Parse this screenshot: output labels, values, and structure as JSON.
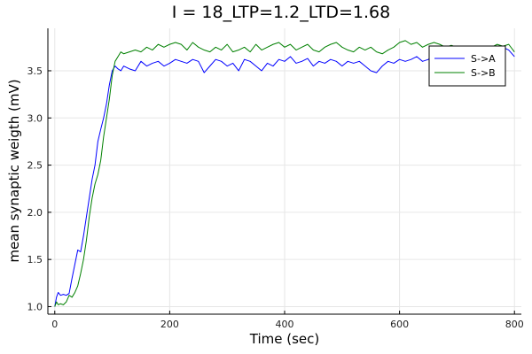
{
  "chart_data": {
    "type": "line",
    "title": "I = 18_LTP=1.2_LTD=1.68",
    "xlabel": "Time (sec)",
    "ylabel": "mean synaptic weigth (mV)",
    "xlim": [
      -12,
      812
    ],
    "ylim": [
      0.92,
      3.95
    ],
    "xticks": [
      0,
      200,
      400,
      600,
      800
    ],
    "yticks": [
      1.0,
      1.5,
      2.0,
      2.5,
      3.0,
      3.5
    ],
    "grid": true,
    "legend_position": "top-right",
    "series": [
      {
        "name": "S->A",
        "color": "#0000ff",
        "x": [
          0,
          3,
          6,
          10,
          15,
          20,
          25,
          30,
          35,
          40,
          45,
          50,
          55,
          60,
          65,
          70,
          75,
          80,
          85,
          90,
          95,
          100,
          105,
          110,
          115,
          120,
          130,
          140,
          150,
          160,
          170,
          180,
          190,
          200,
          210,
          220,
          230,
          240,
          250,
          260,
          270,
          280,
          290,
          300,
          310,
          320,
          330,
          340,
          350,
          360,
          370,
          380,
          390,
          400,
          410,
          420,
          430,
          440,
          450,
          460,
          470,
          480,
          490,
          500,
          510,
          520,
          530,
          540,
          550,
          560,
          570,
          580,
          590,
          600,
          610,
          620,
          630,
          640,
          650,
          660,
          670,
          680,
          690,
          700,
          710,
          720,
          730,
          740,
          750,
          760,
          770,
          780,
          790,
          800
        ],
        "y": [
          1.0,
          1.1,
          1.15,
          1.12,
          1.13,
          1.12,
          1.14,
          1.3,
          1.45,
          1.6,
          1.58,
          1.75,
          1.95,
          2.15,
          2.35,
          2.5,
          2.75,
          2.88,
          3.0,
          3.15,
          3.35,
          3.5,
          3.55,
          3.52,
          3.5,
          3.55,
          3.52,
          3.5,
          3.6,
          3.55,
          3.58,
          3.6,
          3.55,
          3.58,
          3.62,
          3.6,
          3.58,
          3.62,
          3.6,
          3.48,
          3.55,
          3.62,
          3.6,
          3.55,
          3.58,
          3.5,
          3.62,
          3.6,
          3.55,
          3.5,
          3.58,
          3.55,
          3.62,
          3.6,
          3.65,
          3.58,
          3.6,
          3.63,
          3.55,
          3.6,
          3.58,
          3.62,
          3.6,
          3.55,
          3.6,
          3.58,
          3.6,
          3.55,
          3.5,
          3.48,
          3.55,
          3.6,
          3.58,
          3.62,
          3.6,
          3.62,
          3.65,
          3.6,
          3.62,
          3.68,
          3.65,
          3.68,
          3.7,
          3.72,
          3.68,
          3.7,
          3.72,
          3.7,
          3.72,
          3.73,
          3.72,
          3.75,
          3.72,
          3.65
        ]
      },
      {
        "name": "S->B",
        "color": "#008000",
        "x": [
          0,
          3,
          6,
          10,
          15,
          20,
          25,
          30,
          35,
          40,
          45,
          50,
          55,
          60,
          65,
          70,
          75,
          80,
          85,
          90,
          95,
          100,
          105,
          110,
          115,
          120,
          130,
          140,
          150,
          160,
          170,
          180,
          190,
          200,
          210,
          220,
          230,
          240,
          250,
          260,
          270,
          280,
          290,
          300,
          310,
          320,
          330,
          340,
          350,
          360,
          370,
          380,
          390,
          400,
          410,
          420,
          430,
          440,
          450,
          460,
          470,
          480,
          490,
          500,
          510,
          520,
          530,
          540,
          550,
          560,
          570,
          580,
          590,
          600,
          610,
          620,
          630,
          640,
          650,
          660,
          670,
          680,
          690,
          700,
          710,
          720,
          730,
          740,
          750,
          760,
          770,
          780,
          790,
          800
        ],
        "y": [
          1.0,
          1.05,
          1.02,
          1.03,
          1.02,
          1.05,
          1.12,
          1.1,
          1.15,
          1.22,
          1.35,
          1.5,
          1.7,
          1.95,
          2.15,
          2.3,
          2.4,
          2.55,
          2.8,
          3.0,
          3.2,
          3.45,
          3.6,
          3.65,
          3.7,
          3.68,
          3.7,
          3.72,
          3.7,
          3.75,
          3.72,
          3.78,
          3.75,
          3.78,
          3.8,
          3.78,
          3.72,
          3.8,
          3.75,
          3.72,
          3.7,
          3.75,
          3.72,
          3.78,
          3.7,
          3.72,
          3.75,
          3.7,
          3.78,
          3.72,
          3.75,
          3.78,
          3.8,
          3.75,
          3.78,
          3.72,
          3.75,
          3.78,
          3.72,
          3.7,
          3.75,
          3.78,
          3.8,
          3.75,
          3.72,
          3.7,
          3.75,
          3.72,
          3.75,
          3.7,
          3.68,
          3.72,
          3.75,
          3.8,
          3.82,
          3.78,
          3.8,
          3.75,
          3.78,
          3.8,
          3.78,
          3.75,
          3.77,
          3.75,
          3.76,
          3.75,
          3.75,
          3.73,
          3.74,
          3.75,
          3.78,
          3.76,
          3.78,
          3.7
        ]
      }
    ]
  }
}
